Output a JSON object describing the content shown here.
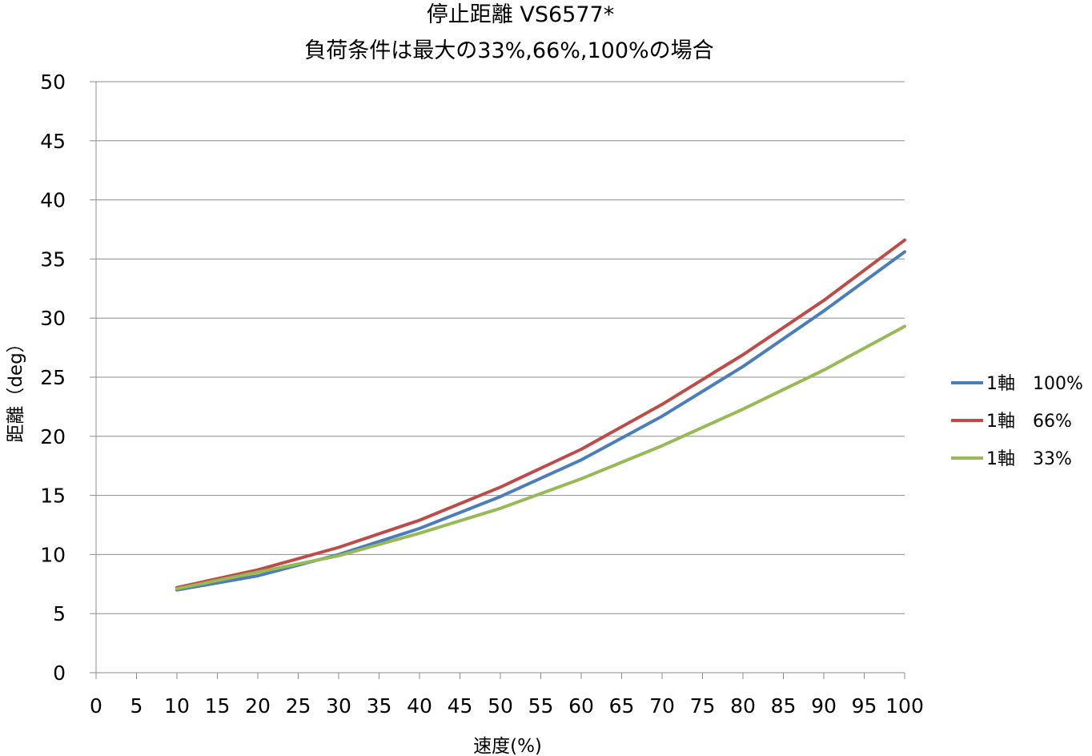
{
  "chart_data": {
    "type": "line",
    "title": "停止距離 VS6577*",
    "subtitle": "負荷条件は最大の33%,66%,100%の場合",
    "xlabel": "速度(%)",
    "ylabel": "距離（deg）",
    "xlim": [
      0,
      100
    ],
    "ylim": [
      0,
      50
    ],
    "x_ticks": [
      0,
      5,
      10,
      15,
      20,
      25,
      30,
      35,
      40,
      45,
      50,
      55,
      60,
      65,
      70,
      75,
      80,
      85,
      90,
      95,
      100
    ],
    "y_ticks": [
      0,
      5,
      10,
      15,
      20,
      25,
      30,
      35,
      40,
      45,
      50
    ],
    "grid": "horizontal",
    "legend_position": "right",
    "x": [
      10,
      20,
      30,
      40,
      50,
      60,
      70,
      80,
      90,
      100
    ],
    "series": [
      {
        "name": "1軸　100%",
        "color": "#4a7ebb",
        "values": [
          7.0,
          8.2,
          10.0,
          12.2,
          14.9,
          18.0,
          21.7,
          25.9,
          30.6,
          35.6
        ]
      },
      {
        "name": "1軸　66%",
        "color": "#be4b48",
        "values": [
          7.2,
          8.7,
          10.6,
          12.9,
          15.7,
          18.9,
          22.7,
          26.9,
          31.5,
          36.6
        ]
      },
      {
        "name": "1軸　33%",
        "color": "#98b954",
        "values": [
          7.1,
          8.5,
          9.9,
          11.8,
          13.9,
          16.4,
          19.2,
          22.3,
          25.6,
          29.3
        ]
      }
    ]
  }
}
